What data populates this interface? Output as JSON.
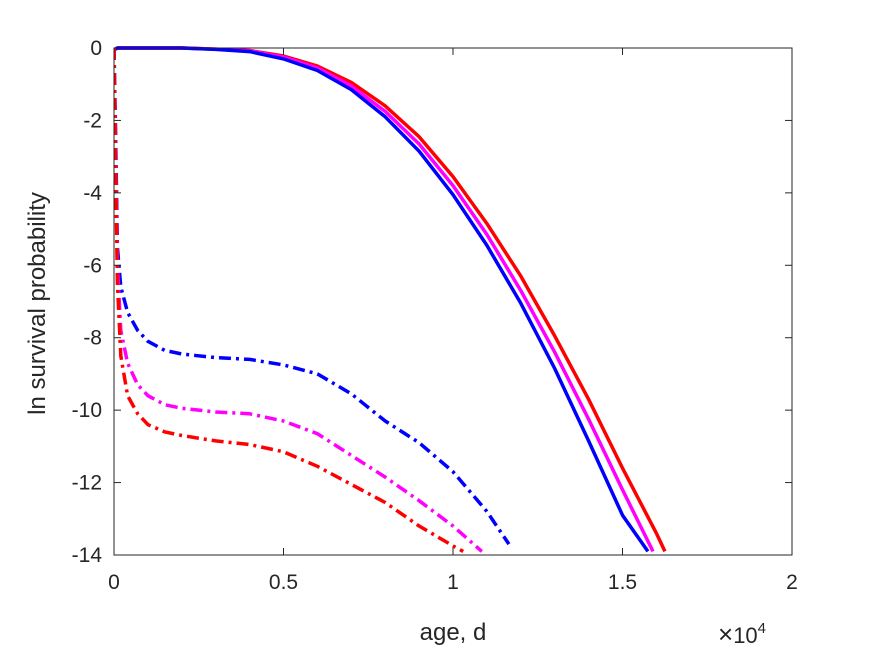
{
  "chart_data": {
    "type": "line",
    "title": "",
    "xlabel": "age, d",
    "ylabel": "ln survival probability",
    "x_exponent_label": {
      "base": "10",
      "power": "4",
      "times": "×"
    },
    "xlim": [
      0,
      20000
    ],
    "ylim": [
      -14,
      0
    ],
    "x_ticks": [
      0,
      5000,
      10000,
      15000,
      20000
    ],
    "x_tick_labels": [
      "0",
      "0.5",
      "1",
      "1.5",
      "2"
    ],
    "y_ticks": [
      0,
      -2,
      -4,
      -6,
      -8,
      -10,
      -12,
      -14
    ],
    "y_tick_labels": [
      "0",
      "-2",
      "-4",
      "-6",
      "-8",
      "-10",
      "-12",
      "-14"
    ],
    "grid": false,
    "legend": "none",
    "series": [
      {
        "color": "#ff0000",
        "style": "solid",
        "x": [
          0,
          100,
          2000,
          3000,
          4000,
          5000,
          6000,
          7000,
          8000,
          9000,
          10000,
          11000,
          12000,
          13000,
          14000,
          15000,
          16000,
          16250
        ],
        "y": [
          -0.05,
          0,
          0,
          -0.03,
          -0.07,
          -0.22,
          -0.5,
          -0.95,
          -1.6,
          -2.45,
          -3.55,
          -4.85,
          -6.3,
          -7.95,
          -9.7,
          -11.6,
          -13.4,
          -13.9
        ]
      },
      {
        "color": "#ff00ff",
        "style": "solid",
        "x": [
          0,
          100,
          2000,
          3000,
          4000,
          5000,
          6000,
          7000,
          8000,
          9000,
          10000,
          11000,
          12000,
          13000,
          14000,
          15000,
          15900
        ],
        "y": [
          -0.05,
          0,
          0,
          -0.03,
          -0.08,
          -0.25,
          -0.55,
          -1.05,
          -1.75,
          -2.65,
          -3.8,
          -5.15,
          -6.7,
          -8.4,
          -10.25,
          -12.2,
          -13.9
        ]
      },
      {
        "color": "#0000ff",
        "style": "solid",
        "x": [
          0,
          100,
          2000,
          3000,
          4000,
          5000,
          6000,
          7000,
          8000,
          9000,
          10000,
          11000,
          12000,
          13000,
          14000,
          15000,
          15750
        ],
        "y": [
          -0.05,
          0,
          0,
          -0.04,
          -0.1,
          -0.3,
          -0.62,
          -1.15,
          -1.9,
          -2.85,
          -4.05,
          -5.45,
          -7.05,
          -8.85,
          -10.85,
          -12.9,
          -13.9
        ]
      },
      {
        "color": "#0000ff",
        "style": "dashdot",
        "x": [
          0,
          50,
          100,
          200,
          400,
          700,
          1000,
          1500,
          2000,
          3000,
          4000,
          5000,
          6000,
          7000,
          8000,
          9000,
          10000,
          11000,
          11650
        ],
        "y": [
          0,
          -2.5,
          -5.5,
          -6.6,
          -7.3,
          -7.8,
          -8.1,
          -8.35,
          -8.45,
          -8.55,
          -8.6,
          -8.75,
          -9.0,
          -9.55,
          -10.3,
          -10.9,
          -11.7,
          -12.8,
          -13.7
        ]
      },
      {
        "color": "#ff00ff",
        "style": "dashdot",
        "x": [
          0,
          50,
          100,
          200,
          400,
          700,
          1000,
          1500,
          2000,
          3000,
          4000,
          5000,
          6000,
          7000,
          8000,
          9000,
          10000,
          10850
        ],
        "y": [
          0,
          -3,
          -6.0,
          -7.8,
          -8.7,
          -9.3,
          -9.6,
          -9.85,
          -9.95,
          -10.05,
          -10.1,
          -10.3,
          -10.65,
          -11.25,
          -11.85,
          -12.5,
          -13.2,
          -13.9
        ]
      },
      {
        "color": "#ff0000",
        "style": "dashdot",
        "x": [
          0,
          50,
          100,
          200,
          400,
          700,
          1000,
          1500,
          2000,
          3000,
          4000,
          5000,
          6000,
          7000,
          8000,
          9000,
          10000,
          10300
        ],
        "y": [
          0,
          -3.5,
          -6.5,
          -8.5,
          -9.6,
          -10.1,
          -10.4,
          -10.6,
          -10.7,
          -10.85,
          -10.95,
          -11.15,
          -11.55,
          -12.05,
          -12.55,
          -13.2,
          -13.75,
          -13.9
        ]
      }
    ]
  }
}
